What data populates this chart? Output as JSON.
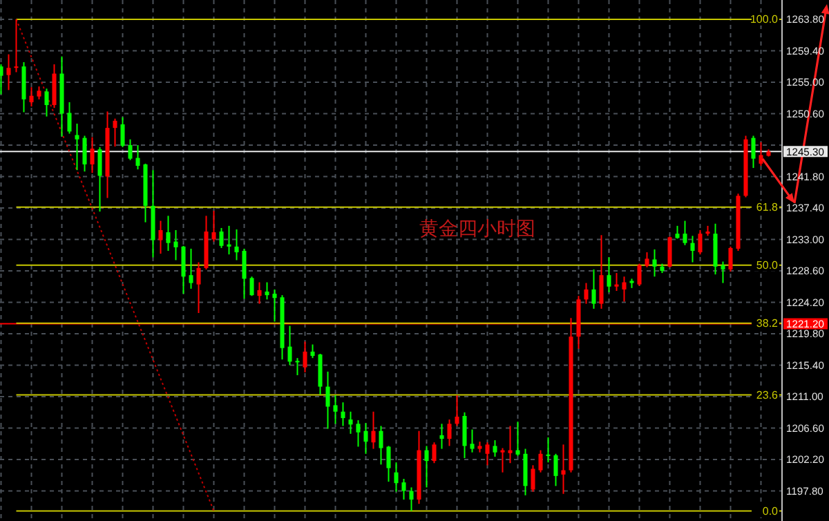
{
  "chart_data": {
    "type": "candlestick",
    "annotations": [
      "黄金四小时图"
    ],
    "categories": [
      null,
      null,
      null,
      null,
      null,
      null,
      null,
      null,
      null,
      null,
      null,
      null,
      null,
      null,
      null,
      null,
      null,
      null,
      null,
      null,
      null,
      null,
      null,
      null,
      null,
      null,
      null,
      null,
      null,
      null,
      null,
      null,
      null,
      null,
      null,
      null,
      null,
      null,
      null,
      null,
      null,
      null,
      null,
      null,
      null,
      null,
      null,
      null,
      null,
      null,
      null,
      null,
      null,
      null,
      null,
      null,
      null,
      null,
      null,
      null,
      null,
      null,
      null,
      null,
      null,
      null,
      null,
      null,
      null,
      null,
      null,
      null,
      null,
      null,
      null,
      null,
      null,
      null,
      null,
      null,
      null,
      null,
      null,
      null,
      null,
      null,
      null,
      null,
      null,
      null,
      null,
      null,
      null,
      null,
      null,
      null,
      null,
      null,
      null,
      null,
      null,
      null
    ],
    "ohlc": [
      [
        1257.2,
        1257.5,
        1253.3,
        1255.9
      ],
      [
        1256.0,
        1258.9,
        1253.9,
        1257.0
      ],
      [
        1257.0,
        1263.8,
        1256.4,
        1257.2
      ],
      [
        1257.2,
        1257.8,
        1250.8,
        1252.6
      ],
      [
        1252.2,
        1254.3,
        1251.6,
        1253.1
      ],
      [
        1253.0,
        1254.4,
        1252.6,
        1253.8
      ],
      [
        1253.7,
        1254.1,
        1250.2,
        1251.8
      ],
      [
        1251.8,
        1257.5,
        1251.4,
        1256.2
      ],
      [
        1256.2,
        1258.6,
        1247.4,
        1250.6
      ],
      [
        1250.7,
        1252.2,
        1247.8,
        1248.1
      ],
      [
        1247.6,
        1249.2,
        1242.7,
        1247.0
      ],
      [
        1247.2,
        1247.5,
        1242.5,
        1243.5
      ],
      [
        1243.5,
        1247.3,
        1242.3,
        1245.7
      ],
      [
        1245.6,
        1245.9,
        1236.9,
        1241.9
      ],
      [
        1241.8,
        1250.9,
        1238.8,
        1248.6
      ],
      [
        1248.6,
        1249.9,
        1246.0,
        1249.6
      ],
      [
        1249.1,
        1250.1,
        1245.9,
        1246.1
      ],
      [
        1246.2,
        1247.0,
        1244.1,
        1244.3
      ],
      [
        1244.4,
        1246.2,
        1242.8,
        1243.3
      ],
      [
        1243.5,
        1243.6,
        1235.4,
        1237.7
      ],
      [
        1237.7,
        1242.7,
        1230.5,
        1232.9
      ],
      [
        1232.9,
        1235.6,
        1231.0,
        1234.3
      ],
      [
        1234.0,
        1236.3,
        1231.4,
        1232.5
      ],
      [
        1232.7,
        1234.3,
        1230.1,
        1231.9
      ],
      [
        1232.0,
        1232.1,
        1225.4,
        1227.8
      ],
      [
        1228.0,
        1231.7,
        1226.1,
        1226.9
      ],
      [
        1226.7,
        1229.8,
        1222.7,
        1229.0
      ],
      [
        1229.0,
        1236.3,
        1228.8,
        1234.1
      ],
      [
        1233.0,
        1237.0,
        1232.7,
        1234.0
      ],
      [
        1234.1,
        1234.6,
        1231.8,
        1232.1
      ],
      [
        1232.3,
        1234.9,
        1230.9,
        1232.0
      ],
      [
        1232.0,
        1234.4,
        1230.1,
        1231.2
      ],
      [
        1231.4,
        1231.7,
        1224.7,
        1227.5
      ],
      [
        1227.6,
        1227.8,
        1225.1,
        1225.2
      ],
      [
        1225.1,
        1227.0,
        1224.0,
        1225.9
      ],
      [
        1225.7,
        1227.0,
        1224.6,
        1225.2
      ],
      [
        1225.4,
        1226.0,
        1221.5,
        1224.8
      ],
      [
        1224.9,
        1225.2,
        1216.2,
        1217.8
      ],
      [
        1218.0,
        1220.9,
        1215.4,
        1215.9
      ],
      [
        1216.0,
        1216.4,
        1214.0,
        1215.8
      ],
      [
        1215.1,
        1218.7,
        1214.4,
        1217.3
      ],
      [
        1217.3,
        1218.3,
        1216.4,
        1216.7
      ],
      [
        1216.9,
        1217.0,
        1211.3,
        1212.4
      ],
      [
        1212.4,
        1214.5,
        1206.5,
        1209.6
      ],
      [
        1209.8,
        1211.2,
        1207.2,
        1208.9
      ],
      [
        1208.9,
        1210.2,
        1206.9,
        1208.0
      ],
      [
        1207.8,
        1208.9,
        1205.8,
        1207.1
      ],
      [
        1207.2,
        1207.7,
        1204.0,
        1206.0
      ],
      [
        1206.2,
        1207.3,
        1203.0,
        1204.7
      ],
      [
        1204.6,
        1208.9,
        1203.7,
        1206.2
      ],
      [
        1206.2,
        1206.9,
        1201.5,
        1203.8
      ],
      [
        1204.0,
        1204.1,
        1199.1,
        1201.0
      ],
      [
        1200.4,
        1201.8,
        1197.7,
        1198.9
      ],
      [
        1199.0,
        1199.5,
        1196.6,
        1197.8
      ],
      [
        1197.8,
        1198.3,
        1195.0,
        1196.6
      ],
      [
        1196.6,
        1206.2,
        1196.0,
        1203.5
      ],
      [
        1203.5,
        1204.1,
        1198.3,
        1202.0
      ],
      [
        1202.0,
        1204.6,
        1201.7,
        1204.3
      ],
      [
        1205.6,
        1207.2,
        1203.7,
        1205.1
      ],
      [
        1205.1,
        1207.8,
        1204.1,
        1207.2
      ],
      [
        1207.2,
        1211.2,
        1206.9,
        1208.2
      ],
      [
        1208.3,
        1208.8,
        1202.4,
        1204.1
      ],
      [
        1204.4,
        1206.4,
        1203.2,
        1203.7
      ],
      [
        1203.7,
        1204.7,
        1203.2,
        1204.1
      ],
      [
        1203.0,
        1204.6,
        1201.4,
        1204.3
      ],
      [
        1204.1,
        1204.9,
        1202.6,
        1203.2
      ],
      [
        1203.2,
        1203.8,
        1200.4,
        1203.5
      ],
      [
        1203.1,
        1206.9,
        1201.7,
        1203.5
      ],
      [
        1203.5,
        1207.5,
        1202.7,
        1202.9
      ],
      [
        1203.0,
        1203.7,
        1197.2,
        1198.5
      ],
      [
        1198.0,
        1201.4,
        1197.7,
        1200.9
      ],
      [
        1200.7,
        1203.5,
        1200.4,
        1203.0
      ],
      [
        1202.9,
        1205.3,
        1201.8,
        1202.7
      ],
      [
        1202.8,
        1203.0,
        1198.5,
        1199.9
      ],
      [
        1200.1,
        1204.3,
        1197.4,
        1200.7
      ],
      [
        1200.7,
        1222.0,
        1200.4,
        1219.4
      ],
      [
        1219.4,
        1225.1,
        1217.7,
        1224.6
      ],
      [
        1224.6,
        1226.9,
        1224.0,
        1226.0
      ],
      [
        1226.0,
        1228.8,
        1223.3,
        1224.0
      ],
      [
        1224.0,
        1233.6,
        1223.3,
        1228.0
      ],
      [
        1228.0,
        1230.5,
        1225.6,
        1226.4
      ],
      [
        1226.4,
        1228.3,
        1225.8,
        1226.7
      ],
      [
        1226.0,
        1227.8,
        1224.3,
        1227.0
      ],
      [
        1227.2,
        1227.5,
        1226.2,
        1226.9
      ],
      [
        1226.7,
        1229.6,
        1226.5,
        1229.4
      ],
      [
        1229.3,
        1231.2,
        1229.1,
        1230.3
      ],
      [
        1230.2,
        1231.6,
        1227.8,
        1229.2
      ],
      [
        1229.2,
        1229.6,
        1228.3,
        1228.6
      ],
      [
        1229.2,
        1233.4,
        1229.1,
        1233.3
      ],
      [
        1233.8,
        1234.9,
        1233.1,
        1233.2
      ],
      [
        1233.8,
        1235.6,
        1232.2,
        1232.5
      ],
      [
        1232.5,
        1233.5,
        1229.8,
        1231.4
      ],
      [
        1231.2,
        1234.3,
        1230.9,
        1233.8
      ],
      [
        1233.8,
        1234.9,
        1233.5,
        1234.1
      ],
      [
        1233.8,
        1235.2,
        1228.1,
        1229.2
      ],
      [
        1229.4,
        1229.9,
        1226.9,
        1228.8
      ],
      [
        1228.8,
        1232.0,
        1228.5,
        1231.8
      ],
      [
        1231.7,
        1239.4,
        1231.4,
        1239.1
      ],
      [
        1239.1,
        1247.5,
        1238.9,
        1247.0
      ],
      [
        1247.2,
        1247.5,
        1243.0,
        1244.3
      ],
      [
        1243.6,
        1246.6,
        1243.3,
        1244.8
      ],
      [
        1244.7,
        1245.6,
        1244.6,
        1245.3
      ]
    ],
    "colors": [
      "#00ff00",
      "#ff0000",
      "#ff0000",
      "#00ff00",
      "#ff0000",
      "#ff0000",
      "#00ff00",
      "#ff0000",
      "#00ff00",
      "#00ff00",
      "#00ff00",
      "#00ff00",
      "#ff0000",
      "#00ff00",
      "#ff0000",
      "#ff0000",
      "#00ff00",
      "#00ff00",
      "#00ff00",
      "#00ff00",
      "#00ff00",
      "#ff0000",
      "#00ff00",
      "#00ff00",
      "#00ff00",
      "#00ff00",
      "#ff0000",
      "#ff0000",
      "#ff0000",
      "#00ff00",
      "#00ff00",
      "#00ff00",
      "#00ff00",
      "#00ff00",
      "#ff0000",
      "#00ff00",
      "#00ff00",
      "#00ff00",
      "#00ff00",
      "#00ff00",
      "#ff0000",
      "#00ff00",
      "#00ff00",
      "#00ff00",
      "#00ff00",
      "#00ff00",
      "#00ff00",
      "#00ff00",
      "#00ff00",
      "#ff0000",
      "#00ff00",
      "#00ff00",
      "#00ff00",
      "#00ff00",
      "#00ff00",
      "#ff0000",
      "#00ff00",
      "#ff0000",
      "#00ff00",
      "#ff0000",
      "#ff0000",
      "#00ff00",
      "#00ff00",
      "#ff0000",
      "#ff0000",
      "#00ff00",
      "#ff0000",
      "#ff0000",
      "#00ff00",
      "#00ff00",
      "#ff0000",
      "#ff0000",
      "#00ff00",
      "#00ff00",
      "#ff0000",
      "#ff0000",
      "#ff0000",
      "#ff0000",
      "#00ff00",
      "#ff0000",
      "#00ff00",
      "#ff0000",
      "#ff0000",
      "#00ff00",
      "#ff0000",
      "#ff0000",
      "#00ff00",
      "#00ff00",
      "#ff0000",
      "#00ff00",
      "#00ff00",
      "#00ff00",
      "#ff0000",
      "#ff0000",
      "#00ff00",
      "#00ff00",
      "#ff0000",
      "#ff0000",
      "#ff0000",
      "#00ff00",
      "#ff0000",
      "#ff0000"
    ],
    "series": [
      {
        "type": "line",
        "color": "#c00000",
        "line_style": "dotted",
        "values": [
          null,
          null,
          1263.8,
          null,
          null,
          null,
          null,
          null,
          null,
          null,
          null,
          null,
          null,
          null,
          null,
          null,
          null,
          null,
          null,
          null,
          null,
          null,
          null,
          null,
          null,
          null,
          null,
          null,
          1195.0,
          null,
          null,
          null,
          null,
          null,
          null,
          null,
          null,
          null,
          null,
          null,
          null,
          null,
          null,
          null,
          null,
          null,
          null,
          null,
          null,
          null,
          null,
          null,
          null,
          null,
          null,
          null,
          null,
          null,
          null,
          null,
          null,
          null,
          null,
          null,
          null,
          null,
          null,
          null,
          null,
          null,
          null,
          null,
          null,
          null,
          null,
          null,
          null,
          null,
          null,
          null,
          null,
          null,
          null,
          null,
          null,
          null,
          null,
          null,
          null,
          null,
          null,
          null,
          null,
          null,
          null,
          null,
          null,
          null,
          null,
          null,
          null,
          null
        ]
      }
    ],
    "ylim": [
      1193.6,
      1266.5
    ],
    "yticks": [
      {
        "value": 1197.8,
        "label": "1197.80"
      },
      {
        "value": 1202.2,
        "label": "1202.20"
      },
      {
        "value": 1206.6,
        "label": "1206.60"
      },
      {
        "value": 1211.0,
        "label": "1211.00"
      },
      {
        "value": 1215.4,
        "label": "1215.40"
      },
      {
        "value": 1219.8,
        "label": "1219.80"
      },
      {
        "value": 1224.2,
        "label": "1224.20"
      },
      {
        "value": 1228.6,
        "label": "1228.60"
      },
      {
        "value": 1233.0,
        "label": "1233.00"
      },
      {
        "value": 1237.4,
        "label": "1237.40"
      },
      {
        "value": 1241.8,
        "label": "1241.80"
      },
      {
        "value": 1246.2,
        "label": null
      },
      {
        "value": 1250.6,
        "label": "1250.60"
      },
      {
        "value": 1255.0,
        "label": "1255.00"
      },
      {
        "value": 1259.4,
        "label": "1259.40"
      },
      {
        "value": 1263.8,
        "label": "1263.80"
      }
    ],
    "ref_lines": [
      {
        "axis": "y",
        "value": 1245.3,
        "label": "1245.30",
        "color": "#e8e8e8"
      },
      {
        "axis": "y",
        "value": 1221.2,
        "label": "1221.20",
        "color": "#ff0000"
      }
    ],
    "y2lim": [
      -2.03,
      103.92
    ],
    "y2ticks": [
      {
        "value": 0,
        "label": "0.0"
      },
      23.6,
      38.2,
      {
        "value": 50,
        "label": "50.0"
      },
      61.8,
      {
        "value": 100,
        "label": "100.0"
      }
    ],
    "grid": true,
    "tick_labels": "y"
  }
}
